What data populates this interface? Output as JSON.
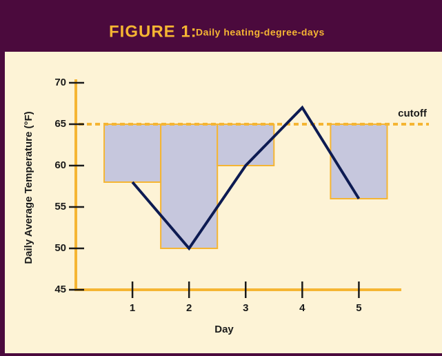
{
  "chart_data": {
    "type": "bar",
    "title": "FIGURE 1:",
    "subtitle": "Daily heating-degree-days",
    "x_label": "Day",
    "y_label": "Daily Average Temperature (°F)",
    "x": [
      1,
      2,
      3,
      4,
      5
    ],
    "values": [
      58,
      50,
      60,
      67,
      56
    ],
    "line_color": "#0d1b52",
    "bar_color": "#c6c7dd",
    "bar_edge_color": "#f5b533",
    "cutoff": 65,
    "cutoff_label": "cutoff",
    "xlim": [
      0,
      5.75
    ],
    "xticks": [
      1,
      2,
      3,
      4,
      5
    ],
    "ylim": [
      45,
      70
    ],
    "yticks": [
      45,
      50,
      55,
      60,
      65,
      70
    ]
  }
}
